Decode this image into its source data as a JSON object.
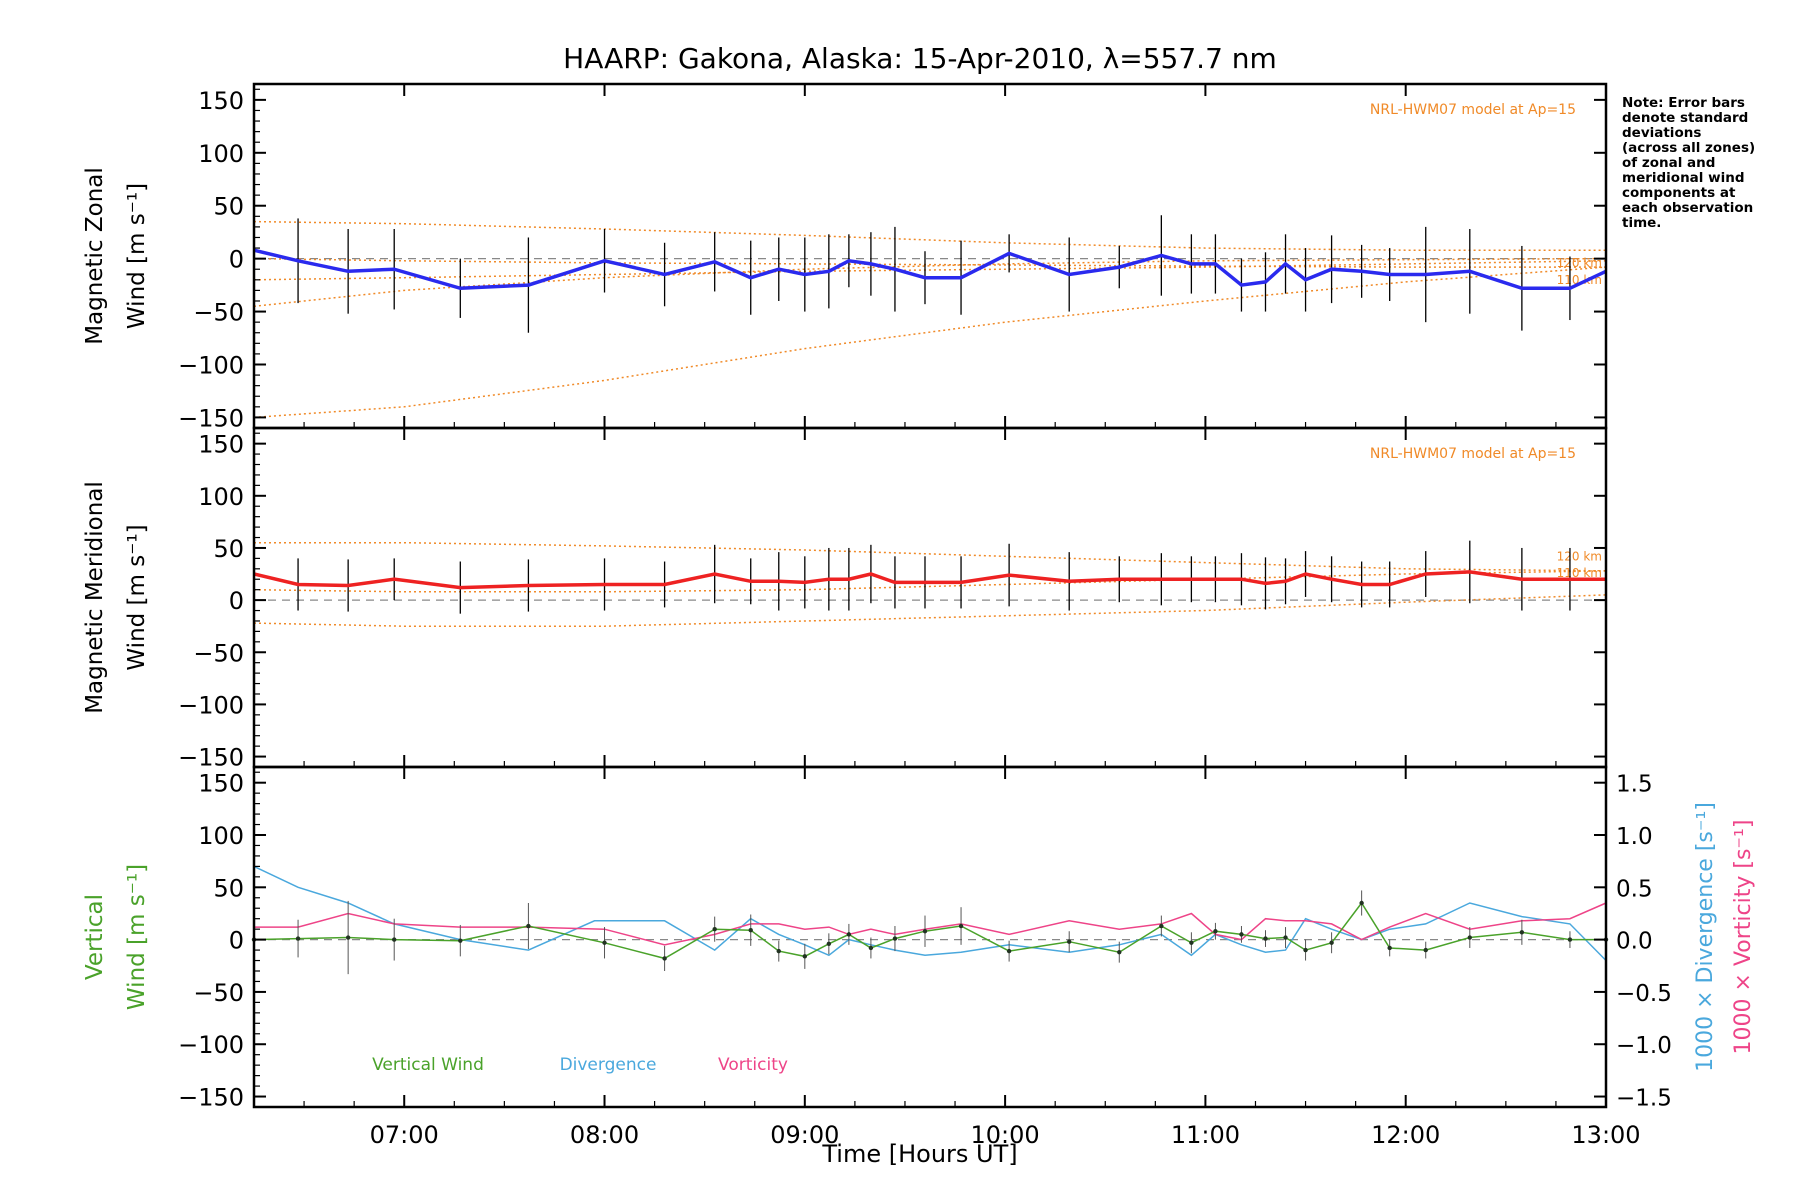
{
  "title": "HAARP: Gakona,  Alaska: 15-Apr-2010, λ=557.7 nm",
  "note_lines": [
    "Note: Error bars",
    "denote standard",
    "deviations",
    "(across all zones)",
    "of zonal and",
    "meridional wind",
    "components at",
    "each observation",
    "time."
  ],
  "xlabel": "Time [Hours UT]",
  "colors": {
    "zonal": "#2a2aee",
    "meridional": "#ee2222",
    "model": "#f08a28",
    "vertical": "#4aa22a",
    "divergence": "#4aa8dd",
    "vorticity": "#ee4488",
    "errorbar": "#000000",
    "zero_line": "#888888"
  },
  "chart_data": [
    {
      "type": "line",
      "panel": "zonal",
      "ylabel_lines": [
        "Magnetic Zonal",
        "Wind [m s⁻¹]"
      ],
      "ylim": [
        -160,
        165
      ],
      "yticks": [
        "150",
        "100",
        "50",
        "0",
        "−50",
        "−100",
        "−150"
      ],
      "ytick_values": [
        150,
        100,
        50,
        0,
        -50,
        -100,
        -150
      ],
      "xlim": [
        6.25,
        13.0
      ],
      "xticks": [
        "07:00",
        "08:00",
        "09:00",
        "10:00",
        "11:00",
        "12:00",
        "13:00"
      ],
      "xtick_values": [
        7,
        8,
        9,
        10,
        11,
        12,
        13
      ],
      "model_label": "NRL-HWM07 model at Ap=15",
      "model_altitude_labels": [
        "120 km",
        "110 km"
      ],
      "x": [
        6.25,
        6.47,
        6.72,
        6.95,
        7.28,
        7.62,
        8.0,
        8.3,
        8.55,
        8.73,
        8.87,
        9.0,
        9.12,
        9.22,
        9.33,
        9.45,
        9.6,
        9.78,
        10.02,
        10.32,
        10.57,
        10.78,
        10.93,
        11.05,
        11.18,
        11.3,
        11.4,
        11.5,
        11.63,
        11.78,
        11.92,
        12.1,
        12.32,
        12.58,
        12.82,
        13.0
      ],
      "series": [
        {
          "name": "",
          "role": "observed",
          "values": [
            8,
            -2,
            -12,
            -10,
            -28,
            -25,
            -2,
            -15,
            -3,
            -18,
            -10,
            -15,
            -12,
            -2,
            -5,
            -10,
            -18,
            -18,
            5,
            -15,
            -8,
            3,
            -5,
            -5,
            -25,
            -22,
            -5,
            -20,
            -10,
            -12,
            -15,
            -15,
            -12,
            -28,
            -28,
            -12
          ],
          "errors": [
            10,
            40,
            40,
            38,
            28,
            45,
            30,
            30,
            28,
            35,
            30,
            35,
            35,
            25,
            30,
            40,
            25,
            35,
            18,
            35,
            20,
            38,
            28,
            28,
            25,
            28,
            28,
            30,
            32,
            25,
            25,
            45,
            40,
            40,
            30,
            25
          ]
        },
        {
          "name": "",
          "role": "model",
          "x": [
            6.25,
            7.0,
            8.0,
            9.0,
            10.0,
            11.0,
            12.0,
            13.0
          ],
          "curves": [
            [
              35,
              33,
              28,
              22,
              15,
              10,
              8,
              8
            ],
            [
              0,
              -2,
              -4,
              -5,
              -6,
              -7,
              -8,
              -8
            ],
            [
              -20,
              -18,
              -15,
              -12,
              -10,
              -8,
              -5,
              -2
            ],
            [
              -45,
              -30,
              -18,
              -10,
              -5,
              -2,
              -1,
              0
            ],
            [
              -150,
              -140,
              -115,
              -85,
              -60,
              -40,
              -22,
              -8
            ]
          ]
        }
      ]
    },
    {
      "type": "line",
      "panel": "meridional",
      "ylabel_lines": [
        "Magnetic Meridional",
        "Wind [m s⁻¹]"
      ],
      "ylim": [
        -160,
        165
      ],
      "yticks": [
        "150",
        "100",
        "50",
        "0",
        "−50",
        "−100",
        "−150"
      ],
      "ytick_values": [
        150,
        100,
        50,
        0,
        -50,
        -100,
        -150
      ],
      "xlim": [
        6.25,
        13.0
      ],
      "model_label": "NRL-HWM07 model at Ap=15",
      "model_altitude_labels": [
        "120 km",
        "110 km"
      ],
      "x": [
        6.25,
        6.47,
        6.72,
        6.95,
        7.28,
        7.62,
        8.0,
        8.3,
        8.55,
        8.73,
        8.87,
        9.0,
        9.12,
        9.22,
        9.33,
        9.45,
        9.6,
        9.78,
        10.02,
        10.32,
        10.57,
        10.78,
        10.93,
        11.05,
        11.18,
        11.3,
        11.4,
        11.5,
        11.63,
        11.78,
        11.92,
        12.1,
        12.32,
        12.58,
        12.82,
        13.0
      ],
      "series": [
        {
          "name": "",
          "role": "observed",
          "values": [
            25,
            15,
            14,
            20,
            12,
            14,
            15,
            15,
            25,
            18,
            18,
            17,
            20,
            20,
            25,
            17,
            17,
            17,
            24,
            18,
            20,
            20,
            20,
            20,
            20,
            16,
            18,
            25,
            20,
            15,
            15,
            25,
            27,
            20,
            20,
            20
          ],
          "errors": [
            30,
            25,
            25,
            20,
            25,
            25,
            25,
            22,
            28,
            22,
            28,
            25,
            30,
            30,
            28,
            25,
            25,
            25,
            30,
            28,
            22,
            25,
            22,
            22,
            25,
            25,
            22,
            22,
            22,
            22,
            22,
            22,
            30,
            30,
            30,
            25
          ]
        },
        {
          "name": "",
          "role": "model",
          "x": [
            6.25,
            7.0,
            8.0,
            9.0,
            10.0,
            11.0,
            12.0,
            13.0
          ],
          "curves": [
            [
              55,
              55,
              52,
              48,
              42,
              36,
              30,
              28
            ],
            [
              10,
              8,
              8,
              10,
              15,
              20,
              25,
              28
            ],
            [
              -22,
              -25,
              -25,
              -20,
              -15,
              -10,
              -2,
              5
            ]
          ]
        }
      ]
    },
    {
      "type": "line",
      "panel": "vertical",
      "ylabel_lines": [
        "Vertical",
        "Wind [m s⁻¹]"
      ],
      "ylim": [
        -160,
        165
      ],
      "yticks": [
        "150",
        "100",
        "50",
        "0",
        "−50",
        "−100",
        "−150"
      ],
      "ytick_values": [
        150,
        100,
        50,
        0,
        -50,
        -100,
        -150
      ],
      "y2label": "1000 × Divergence [s⁻¹]",
      "y3label": "1000 × Vorticity [s⁻¹]",
      "y2lim": [
        -1.6,
        1.65
      ],
      "y2ticks": [
        "1.5",
        "1.0",
        "0.5",
        "0.0",
        "−0.5",
        "−1.0",
        "−1.5"
      ],
      "y2tick_values": [
        1.5,
        1.0,
        0.5,
        0.0,
        -0.5,
        -1.0,
        -1.5
      ],
      "xlim": [
        6.25,
        13.0
      ],
      "xticks": [
        "07:00",
        "08:00",
        "09:00",
        "10:00",
        "11:00",
        "12:00",
        "13:00"
      ],
      "xtick_values": [
        7,
        8,
        9,
        10,
        11,
        12,
        13
      ],
      "legend": [
        "Vertical Wind",
        "Divergence",
        "Vorticity"
      ],
      "series": [
        {
          "name": "Vertical Wind",
          "role": "vertical",
          "x": [
            6.25,
            6.47,
            6.72,
            6.95,
            7.28,
            7.62,
            8.0,
            8.3,
            8.55,
            8.73,
            8.87,
            9.0,
            9.12,
            9.22,
            9.33,
            9.45,
            9.6,
            9.78,
            10.02,
            10.32,
            10.57,
            10.78,
            10.93,
            11.05,
            11.18,
            11.3,
            11.4,
            11.5,
            11.63,
            11.78,
            11.92,
            12.1,
            12.32,
            12.58,
            12.82,
            13.0
          ],
          "values": [
            0,
            1,
            2,
            0,
            -1,
            13,
            -3,
            -18,
            10,
            9,
            -11,
            -16,
            -4,
            5,
            -8,
            1,
            8,
            13,
            -11,
            -2,
            -12,
            13,
            -3,
            8,
            5,
            1,
            2,
            -10,
            -3,
            35,
            -8,
            -10,
            2,
            7,
            0,
            0
          ],
          "errors": [
            15,
            18,
            35,
            20,
            15,
            22,
            15,
            12,
            12,
            15,
            10,
            12,
            10,
            10,
            10,
            12,
            15,
            18,
            10,
            10,
            10,
            10,
            10,
            8,
            8,
            8,
            10,
            10,
            10,
            12,
            8,
            8,
            10,
            12,
            8,
            8
          ]
        },
        {
          "name": "Divergence",
          "role": "divergence",
          "x": [
            6.25,
            6.47,
            6.72,
            6.95,
            7.28,
            7.62,
            7.95,
            8.3,
            8.55,
            8.73,
            8.87,
            9.0,
            9.12,
            9.22,
            9.33,
            9.45,
            9.6,
            9.78,
            10.02,
            10.32,
            10.57,
            10.78,
            10.93,
            11.05,
            11.18,
            11.3,
            11.4,
            11.5,
            11.63,
            11.78,
            11.92,
            12.1,
            12.32,
            12.58,
            12.82,
            13.0
          ],
          "values": [
            0.7,
            0.5,
            0.35,
            0.15,
            0.0,
            -0.1,
            0.18,
            0.18,
            -0.1,
            0.2,
            0.05,
            -0.05,
            -0.15,
            0.0,
            -0.05,
            -0.1,
            -0.15,
            -0.12,
            -0.05,
            -0.12,
            -0.05,
            0.05,
            -0.15,
            0.05,
            -0.05,
            -0.12,
            -0.1,
            0.2,
            0.1,
            0.0,
            0.1,
            0.15,
            0.35,
            0.22,
            0.15,
            -0.2
          ]
        },
        {
          "name": "Vorticity",
          "role": "vorticity",
          "x": [
            6.25,
            6.47,
            6.72,
            6.95,
            7.28,
            7.62,
            8.0,
            8.3,
            8.55,
            8.73,
            8.87,
            9.0,
            9.12,
            9.22,
            9.33,
            9.45,
            9.6,
            9.78,
            10.02,
            10.32,
            10.57,
            10.78,
            10.93,
            11.05,
            11.18,
            11.3,
            11.4,
            11.5,
            11.63,
            11.78,
            11.92,
            12.1,
            12.32,
            12.58,
            12.82,
            13.0
          ],
          "values": [
            0.12,
            0.12,
            0.25,
            0.15,
            0.12,
            0.12,
            0.1,
            -0.05,
            0.05,
            0.15,
            0.15,
            0.1,
            0.12,
            0.05,
            0.1,
            0.05,
            0.1,
            0.15,
            0.05,
            0.18,
            0.1,
            0.15,
            0.25,
            0.05,
            0.0,
            0.2,
            0.18,
            0.18,
            0.15,
            0.0,
            0.12,
            0.25,
            0.1,
            0.18,
            0.2,
            0.35
          ]
        }
      ]
    }
  ]
}
